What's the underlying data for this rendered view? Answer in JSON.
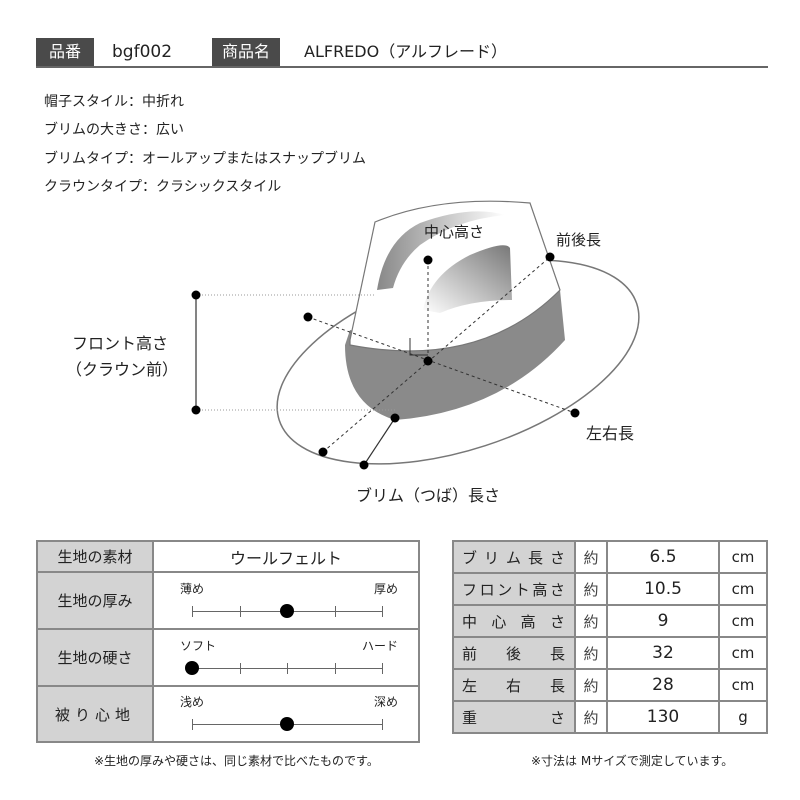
{
  "header": {
    "code_label": "品番",
    "code": "bgf002",
    "name_label": "商品名",
    "name": "ALFREDO（アルフレード）"
  },
  "specs": [
    "帽子スタイル：中折れ",
    "ブリムの大きさ：広い",
    "ブリムタイプ：オールアップまたはスナップブリム",
    "クラウンタイプ：クラシックスタイル"
  ],
  "diagram": {
    "center_height": "中心高さ",
    "front_back": "前後長",
    "front_height_1": "フロント高さ",
    "front_height_2": "（クラウン前）",
    "left_right": "左右長",
    "brim": "ブリム（つば）長さ"
  },
  "fabric": {
    "material_label": "生地の素材",
    "material": "ウールフェルト",
    "scales": [
      {
        "label": "生地の厚み",
        "left": "薄め",
        "right": "厚め",
        "steps": 5,
        "value": 2,
        "inner_ticks": true
      },
      {
        "label": "生地の硬さ",
        "left": "ソフト",
        "right": "ハード",
        "steps": 5,
        "value": 0,
        "inner_ticks": true
      },
      {
        "label": "被り心地",
        "left": "浅め",
        "right": "深め",
        "steps": 5,
        "value": 2,
        "inner_ticks": false
      }
    ],
    "note": "※生地の厚みや硬さは、同じ素材で比べたものです。"
  },
  "sizes": {
    "rows": [
      {
        "label": "ブリム長さ",
        "prefix": "約",
        "value": "6.5",
        "unit": "cm"
      },
      {
        "label": "フロント高さ",
        "prefix": "約",
        "value": "10.5",
        "unit": "cm"
      },
      {
        "label": "中心高さ",
        "prefix": "約",
        "value": "9",
        "unit": "cm"
      },
      {
        "label": "前後長",
        "prefix": "約",
        "value": "32",
        "unit": "cm"
      },
      {
        "label": "左右長",
        "prefix": "約",
        "value": "28",
        "unit": "cm"
      },
      {
        "label": "重さ",
        "prefix": "約",
        "value": "130",
        "unit": "g"
      }
    ],
    "note": "※寸法は Mサイズで測定しています。"
  },
  "colors": {
    "label_bg": "#4a4a4a",
    "cell_bg": "#d3d3d3",
    "band": "#8a8a8a"
  }
}
